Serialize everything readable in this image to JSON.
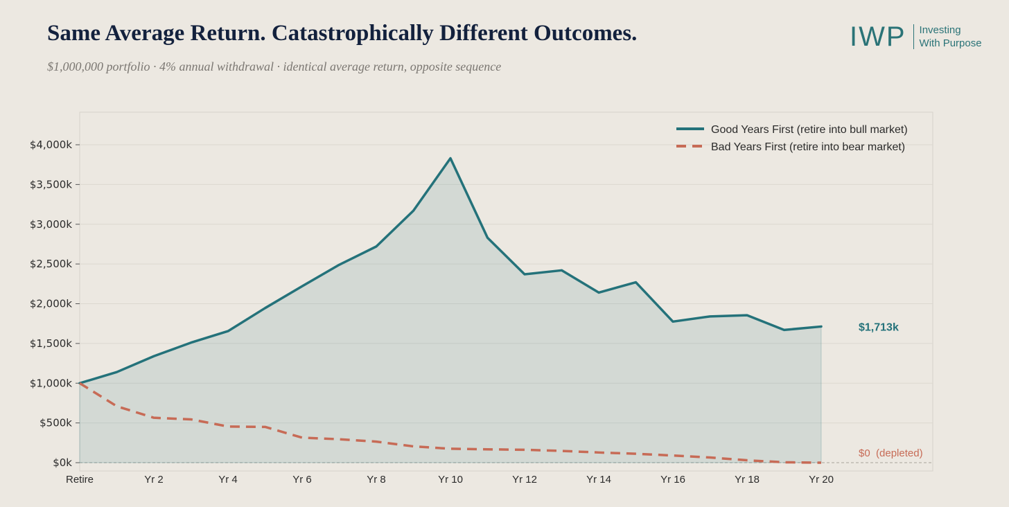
{
  "header": {
    "title": "Same Average Return. Catastrophically Different Outcomes.",
    "subtitle": "$1,000,000 portfolio · 4% annual withdrawal · identical average return, opposite sequence"
  },
  "logo": {
    "mark": "IWP",
    "line1": "Investing",
    "line2": "With Purpose"
  },
  "colors": {
    "good": "#24727a",
    "bad": "#c76b56",
    "background": "#ece8e1",
    "title": "#13213d"
  },
  "chart_data": {
    "type": "line",
    "title": "Same Average Return. Catastrophically Different Outcomes.",
    "subtitle": "$1,000,000 portfolio · 4% annual withdrawal · identical average return, opposite sequence",
    "xlabel": "",
    "ylabel": "",
    "x": [
      0,
      1,
      2,
      3,
      4,
      5,
      6,
      7,
      8,
      9,
      10,
      11,
      12,
      13,
      14,
      15,
      16,
      17,
      18,
      19,
      20
    ],
    "x_tick_labels": [
      {
        "x": 0,
        "label": "Retire"
      },
      {
        "x": 2,
        "label": "Yr 2"
      },
      {
        "x": 4,
        "label": "Yr 4"
      },
      {
        "x": 6,
        "label": "Yr 6"
      },
      {
        "x": 8,
        "label": "Yr 8"
      },
      {
        "x": 10,
        "label": "Yr 10"
      },
      {
        "x": 12,
        "label": "Yr 12"
      },
      {
        "x": 14,
        "label": "Yr 14"
      },
      {
        "x": 16,
        "label": "Yr 16"
      },
      {
        "x": 18,
        "label": "Yr 18"
      },
      {
        "x": 20,
        "label": "Yr 20"
      }
    ],
    "y_ticks": [
      0,
      500,
      1000,
      1500,
      2000,
      2500,
      3000,
      3500,
      4000
    ],
    "y_tick_labels": [
      "$0k",
      "$500k",
      "$1,000k",
      "$1,500k",
      "$2,000k",
      "$2,500k",
      "$3,000k",
      "$3,500k",
      "$4,000k"
    ],
    "xlim": [
      0,
      23
    ],
    "ylim": [
      -100,
      4400
    ],
    "grid": true,
    "legend_position": "top-right",
    "series": [
      {
        "name": "Good Years First (retire into bull market)",
        "style": "solid",
        "fill": true,
        "values": [
          1000,
          1140,
          1340,
          1510,
          1655,
          1945,
          2220,
          2490,
          2720,
          3170,
          3830,
          2830,
          2370,
          2420,
          2140,
          2270,
          1775,
          1840,
          1855,
          1670,
          1713
        ],
        "end_label": "$1,713k"
      },
      {
        "name": "Bad Years First (retire into bear market)",
        "style": "dashed",
        "fill": false,
        "values": [
          1000,
          710,
          565,
          545,
          455,
          450,
          315,
          295,
          265,
          205,
          175,
          168,
          162,
          148,
          128,
          112,
          90,
          65,
          30,
          5,
          0
        ],
        "end_label": "$0  (depleted)"
      }
    ]
  }
}
